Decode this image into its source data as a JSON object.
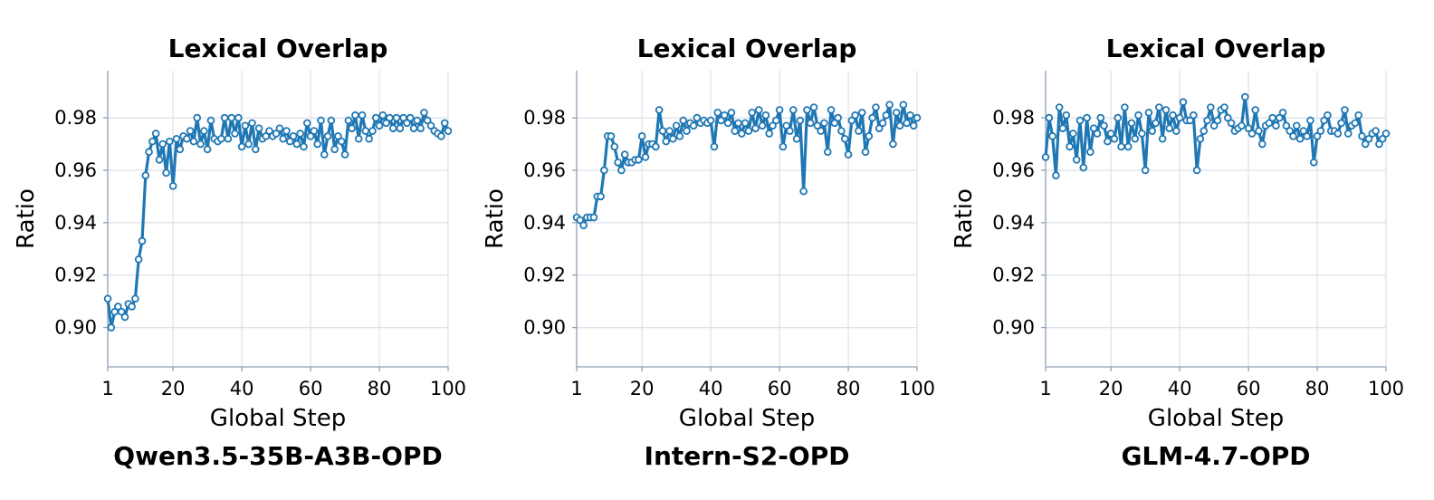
{
  "chart_data": [
    {
      "type": "line",
      "title": "Lexical Overlap",
      "subtitle": "Qwen3.5-35B-A3B-OPD",
      "xlabel": "Global Step",
      "ylabel": "Ratio",
      "xlim": [
        1,
        100
      ],
      "ylim": [
        0.885,
        0.998
      ],
      "xticks": [
        1,
        20,
        40,
        60,
        80,
        100
      ],
      "xtick_labels": [
        "1",
        "20",
        "40",
        "60",
        "80",
        "100"
      ],
      "yticks": [
        0.9,
        0.92,
        0.94,
        0.96,
        0.98
      ],
      "ytick_labels": [
        "0.90",
        "0.92",
        "0.94",
        "0.96",
        "0.98"
      ],
      "grid": true,
      "color": "#1f77b4",
      "series": [
        {
          "x": [
            1,
            2,
            3,
            4,
            5,
            6,
            7,
            8,
            9,
            10,
            11,
            12,
            13,
            14,
            15,
            16,
            17,
            18,
            19,
            20,
            21,
            22,
            23,
            24,
            25,
            26,
            27,
            28,
            29,
            30,
            31,
            32,
            33,
            34,
            35,
            36,
            37,
            38,
            39,
            40,
            41,
            42,
            43,
            44,
            45,
            46,
            47,
            48,
            49,
            50,
            51,
            52,
            53,
            54,
            55,
            56,
            57,
            58,
            59,
            60,
            61,
            62,
            63,
            64,
            65,
            66,
            67,
            68,
            69,
            70,
            71,
            72,
            73,
            74,
            75,
            76,
            77,
            78,
            79,
            80,
            81,
            82,
            83,
            84,
            85,
            86,
            87,
            88,
            89,
            90,
            91,
            92,
            93,
            94,
            95,
            96,
            97,
            98,
            99,
            100
          ],
          "values": [
            0.911,
            0.9,
            0.906,
            0.908,
            0.906,
            0.904,
            0.909,
            0.908,
            0.911,
            0.926,
            0.933,
            0.958,
            0.967,
            0.971,
            0.974,
            0.964,
            0.97,
            0.959,
            0.971,
            0.954,
            0.972,
            0.968,
            0.973,
            0.972,
            0.975,
            0.971,
            0.98,
            0.97,
            0.975,
            0.968,
            0.979,
            0.972,
            0.971,
            0.972,
            0.98,
            0.972,
            0.98,
            0.974,
            0.98,
            0.969,
            0.977,
            0.97,
            0.978,
            0.968,
            0.976,
            0.972,
            0.973,
            0.975,
            0.973,
            0.974,
            0.976,
            0.972,
            0.975,
            0.971,
            0.973,
            0.97,
            0.974,
            0.969,
            0.978,
            0.973,
            0.975,
            0.97,
            0.979,
            0.966,
            0.973,
            0.979,
            0.968,
            0.973,
            0.971,
            0.966,
            0.979,
            0.976,
            0.981,
            0.972,
            0.981,
            0.975,
            0.972,
            0.975,
            0.98,
            0.977,
            0.981,
            0.978,
            0.98,
            0.976,
            0.98,
            0.976,
            0.98,
            0.978,
            0.98,
            0.976,
            0.979,
            0.976,
            0.982,
            0.979,
            0.977,
            0.975,
            0.974,
            0.973,
            0.978,
            0.975
          ]
        }
      ]
    },
    {
      "type": "line",
      "title": "Lexical Overlap",
      "subtitle": "Intern-S2-OPD",
      "xlabel": "Global Step",
      "ylabel": "Ratio",
      "xlim": [
        1,
        100
      ],
      "ylim": [
        0.885,
        0.998
      ],
      "xticks": [
        1,
        20,
        40,
        60,
        80,
        100
      ],
      "xtick_labels": [
        "1",
        "20",
        "40",
        "60",
        "80",
        "100"
      ],
      "yticks": [
        0.9,
        0.92,
        0.94,
        0.96,
        0.98
      ],
      "ytick_labels": [
        "0.90",
        "0.92",
        "0.94",
        "0.96",
        "0.98"
      ],
      "grid": true,
      "color": "#1f77b4",
      "series": [
        {
          "x": [
            1,
            2,
            3,
            4,
            5,
            6,
            7,
            8,
            9,
            10,
            11,
            12,
            13,
            14,
            15,
            16,
            17,
            18,
            19,
            20,
            21,
            22,
            23,
            24,
            25,
            26,
            27,
            28,
            29,
            30,
            31,
            32,
            33,
            34,
            35,
            36,
            37,
            38,
            39,
            40,
            41,
            42,
            43,
            44,
            45,
            46,
            47,
            48,
            49,
            50,
            51,
            52,
            53,
            54,
            55,
            56,
            57,
            58,
            59,
            60,
            61,
            62,
            63,
            64,
            65,
            66,
            67,
            68,
            69,
            70,
            71,
            72,
            73,
            74,
            75,
            76,
            77,
            78,
            79,
            80,
            81,
            82,
            83,
            84,
            85,
            86,
            87,
            88,
            89,
            90,
            91,
            92,
            93,
            94,
            95,
            96,
            97,
            98,
            99,
            100
          ],
          "values": [
            0.942,
            0.941,
            0.939,
            0.942,
            0.942,
            0.942,
            0.95,
            0.95,
            0.96,
            0.973,
            0.973,
            0.969,
            0.963,
            0.96,
            0.966,
            0.963,
            0.963,
            0.964,
            0.964,
            0.973,
            0.965,
            0.97,
            0.97,
            0.969,
            0.983,
            0.975,
            0.971,
            0.975,
            0.972,
            0.977,
            0.973,
            0.979,
            0.975,
            0.978,
            0.977,
            0.98,
            0.978,
            0.979,
            0.978,
            0.979,
            0.969,
            0.982,
            0.979,
            0.981,
            0.978,
            0.982,
            0.975,
            0.978,
            0.974,
            0.978,
            0.975,
            0.982,
            0.976,
            0.983,
            0.977,
            0.981,
            0.974,
            0.977,
            0.979,
            0.983,
            0.969,
            0.977,
            0.975,
            0.983,
            0.972,
            0.979,
            0.952,
            0.983,
            0.978,
            0.984,
            0.977,
            0.975,
            0.978,
            0.967,
            0.983,
            0.978,
            0.98,
            0.975,
            0.972,
            0.966,
            0.979,
            0.981,
            0.975,
            0.982,
            0.967,
            0.973,
            0.98,
            0.984,
            0.976,
            0.978,
            0.981,
            0.985,
            0.97,
            0.982,
            0.977,
            0.985,
            0.978,
            0.981,
            0.977,
            0.98
          ]
        }
      ]
    },
    {
      "type": "line",
      "title": "Lexical Overlap",
      "subtitle": "GLM-4.7-OPD",
      "xlabel": "Global Step",
      "ylabel": "Ratio",
      "xlim": [
        1,
        100
      ],
      "ylim": [
        0.885,
        0.998
      ],
      "xticks": [
        1,
        20,
        40,
        60,
        80,
        100
      ],
      "xtick_labels": [
        "1",
        "20",
        "40",
        "60",
        "80",
        "100"
      ],
      "yticks": [
        0.9,
        0.92,
        0.94,
        0.96,
        0.98
      ],
      "ytick_labels": [
        "0.90",
        "0.92",
        "0.94",
        "0.96",
        "0.98"
      ],
      "grid": true,
      "color": "#1f77b4",
      "series": [
        {
          "x": [
            1,
            2,
            3,
            4,
            5,
            6,
            7,
            8,
            9,
            10,
            11,
            12,
            13,
            14,
            15,
            16,
            17,
            18,
            19,
            20,
            21,
            22,
            23,
            24,
            25,
            26,
            27,
            28,
            29,
            30,
            31,
            32,
            33,
            34,
            35,
            36,
            37,
            38,
            39,
            40,
            41,
            42,
            43,
            44,
            45,
            46,
            47,
            48,
            49,
            50,
            51,
            52,
            53,
            54,
            55,
            56,
            57,
            58,
            59,
            60,
            61,
            62,
            63,
            64,
            65,
            66,
            67,
            68,
            69,
            70,
            71,
            72,
            73,
            74,
            75,
            76,
            77,
            78,
            79,
            80,
            81,
            82,
            83,
            84,
            85,
            86,
            87,
            88,
            89,
            90,
            91,
            92,
            93,
            94,
            95,
            96,
            97,
            98,
            99,
            100
          ],
          "values": [
            0.965,
            0.98,
            0.973,
            0.958,
            0.984,
            0.976,
            0.981,
            0.969,
            0.974,
            0.964,
            0.979,
            0.961,
            0.98,
            0.967,
            0.976,
            0.974,
            0.98,
            0.977,
            0.971,
            0.974,
            0.972,
            0.98,
            0.969,
            0.984,
            0.969,
            0.978,
            0.972,
            0.981,
            0.974,
            0.96,
            0.982,
            0.975,
            0.978,
            0.984,
            0.972,
            0.983,
            0.976,
            0.981,
            0.975,
            0.98,
            0.986,
            0.979,
            0.979,
            0.981,
            0.96,
            0.972,
            0.975,
            0.979,
            0.984,
            0.977,
            0.979,
            0.983,
            0.984,
            0.98,
            0.978,
            0.975,
            0.976,
            0.977,
            0.988,
            0.976,
            0.974,
            0.983,
            0.975,
            0.97,
            0.977,
            0.978,
            0.98,
            0.977,
            0.98,
            0.982,
            0.977,
            0.975,
            0.973,
            0.977,
            0.972,
            0.975,
            0.973,
            0.979,
            0.963,
            0.973,
            0.975,
            0.979,
            0.981,
            0.975,
            0.975,
            0.974,
            0.978,
            0.983,
            0.974,
            0.977,
            0.978,
            0.981,
            0.973,
            0.97,
            0.972,
            0.974,
            0.975,
            0.97,
            0.972,
            0.974
          ]
        }
      ]
    }
  ]
}
